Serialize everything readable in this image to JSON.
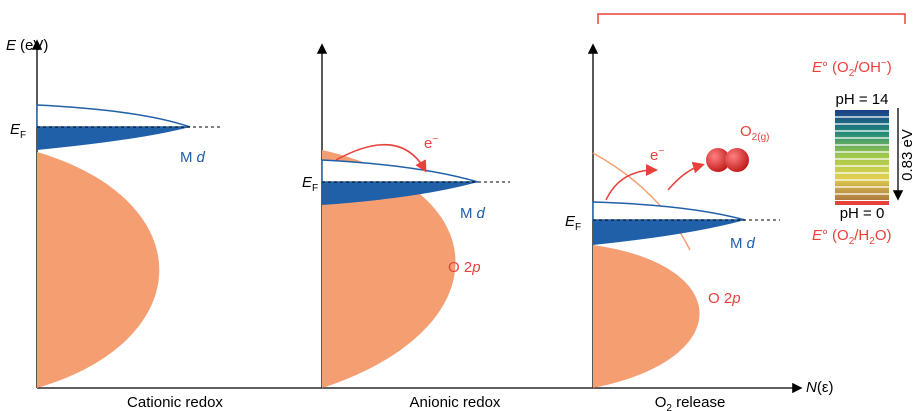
{
  "axes": {
    "energy": {
      "symbol": "E",
      "unit": "(eV)"
    },
    "density": {
      "symbol": "N",
      "arg": "(ε)"
    }
  },
  "panels": [
    {
      "title": "Cationic redox",
      "fermi": {
        "symbol": "E",
        "sub": "F"
      },
      "metal": {
        "symbol": "M",
        "orbital": "d"
      }
    },
    {
      "title": "Anionic redox",
      "fermi": {
        "symbol": "E",
        "sub": "F"
      },
      "metal": {
        "symbol": "M",
        "orbital": "d"
      },
      "electron": {
        "symbol": "e",
        "charge": "−"
      },
      "oxygen": {
        "shell": "O 2",
        "orbital": "p"
      }
    },
    {
      "title": {
        "main": "O",
        "sub": "2",
        "rest": " release"
      },
      "fermi": {
        "symbol": "E",
        "sub": "F"
      },
      "metal": {
        "symbol": "M",
        "orbital": "d"
      },
      "electron": {
        "symbol": "e",
        "charge": "−"
      },
      "oxygen": {
        "shell": "O 2",
        "orbital": "p"
      },
      "gas": {
        "main": "O",
        "sub": "2(g)"
      }
    }
  ],
  "scale": {
    "top": {
      "symbol": "E",
      "degree": "°",
      "open": "(O",
      "sub": "2",
      "partner": "/OH",
      "charge": "−",
      "close": ")"
    },
    "top_ph": "pH = 14",
    "span": "0.83 eV",
    "bottom_ph": "pH = 0",
    "bottom": {
      "symbol": "E",
      "degree": "°",
      "open": "(O",
      "sub": "2",
      "partner": "/H",
      "sub2": "2",
      "tail": "O)"
    }
  }
}
